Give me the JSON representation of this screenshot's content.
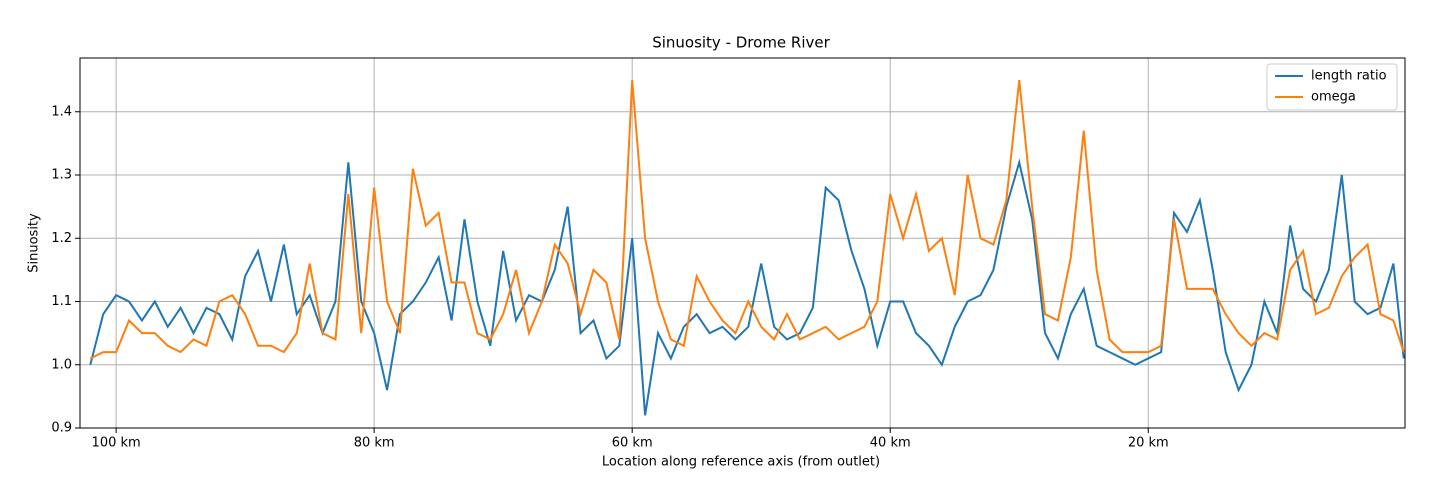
{
  "chart_data": {
    "type": "line",
    "title": "Sinuosity - Drome River",
    "xlabel": "Location along reference axis (from outlet)",
    "ylabel": "Sinuosity",
    "x": [
      102,
      101,
      100,
      99,
      98,
      97,
      96,
      95,
      94,
      93,
      92,
      91,
      90,
      89,
      88,
      87,
      86,
      85,
      84,
      83,
      82,
      81,
      80,
      79,
      78,
      77,
      76,
      75,
      74,
      73,
      72,
      71,
      70,
      69,
      68,
      67,
      66,
      65,
      64,
      63,
      62,
      61,
      60,
      59,
      58,
      57,
      56,
      55,
      54,
      53,
      52,
      51,
      50,
      49,
      48,
      47,
      46,
      45,
      44,
      43,
      42,
      41,
      40,
      39,
      38,
      37,
      36,
      35,
      34,
      33,
      32,
      31,
      30,
      29,
      28,
      27,
      26,
      25,
      24,
      23,
      22,
      21,
      20,
      19,
      18,
      17,
      16,
      15,
      14,
      13,
      12,
      11,
      10,
      9,
      8,
      7,
      6,
      5,
      4,
      3,
      2,
      1,
      0.2
    ],
    "series": [
      {
        "name": "length ratio",
        "color": "#1f77b4",
        "values": [
          1.0,
          1.08,
          1.11,
          1.1,
          1.07,
          1.1,
          1.06,
          1.09,
          1.05,
          1.09,
          1.08,
          1.04,
          1.14,
          1.18,
          1.1,
          1.19,
          1.08,
          1.11,
          1.05,
          1.1,
          1.32,
          1.1,
          1.05,
          0.96,
          1.08,
          1.1,
          1.13,
          1.17,
          1.07,
          1.23,
          1.1,
          1.03,
          1.18,
          1.07,
          1.11,
          1.1,
          1.15,
          1.25,
          1.05,
          1.07,
          1.01,
          1.03,
          1.2,
          0.92,
          1.05,
          1.01,
          1.06,
          1.08,
          1.05,
          1.06,
          1.04,
          1.06,
          1.16,
          1.06,
          1.04,
          1.05,
          1.09,
          1.28,
          1.26,
          1.18,
          1.12,
          1.03,
          1.1,
          1.1,
          1.05,
          1.03,
          1.0,
          1.06,
          1.1,
          1.11,
          1.15,
          1.25,
          1.32,
          1.23,
          1.05,
          1.01,
          1.08,
          1.12,
          1.03,
          1.02,
          1.01,
          1.0,
          1.01,
          1.02,
          1.24,
          1.21,
          1.26,
          1.15,
          1.02,
          0.96,
          1.0,
          1.1,
          1.05,
          1.22,
          1.12,
          1.1,
          1.15,
          1.3,
          1.1,
          1.08,
          1.09,
          1.16,
          1.01
        ]
      },
      {
        "name": "omega",
        "color": "#ff7f0e",
        "values": [
          1.01,
          1.02,
          1.02,
          1.07,
          1.05,
          1.05,
          1.03,
          1.02,
          1.04,
          1.03,
          1.1,
          1.11,
          1.08,
          1.03,
          1.03,
          1.02,
          1.05,
          1.16,
          1.05,
          1.04,
          1.27,
          1.05,
          1.28,
          1.1,
          1.05,
          1.31,
          1.22,
          1.24,
          1.13,
          1.13,
          1.05,
          1.04,
          1.08,
          1.15,
          1.05,
          1.1,
          1.19,
          1.16,
          1.08,
          1.15,
          1.13,
          1.04,
          1.45,
          1.2,
          1.1,
          1.04,
          1.03,
          1.14,
          1.1,
          1.07,
          1.05,
          1.1,
          1.06,
          1.04,
          1.08,
          1.04,
          1.05,
          1.06,
          1.04,
          1.05,
          1.06,
          1.1,
          1.27,
          1.2,
          1.27,
          1.18,
          1.2,
          1.11,
          1.3,
          1.2,
          1.19,
          1.26,
          1.45,
          1.25,
          1.08,
          1.07,
          1.17,
          1.37,
          1.15,
          1.04,
          1.02,
          1.02,
          1.02,
          1.03,
          1.23,
          1.12,
          1.12,
          1.12,
          1.08,
          1.05,
          1.03,
          1.05,
          1.04,
          1.15,
          1.18,
          1.08,
          1.09,
          1.14,
          1.17,
          1.19,
          1.08,
          1.07,
          1.02
        ]
      }
    ],
    "xlim": [
      102.8,
      0.1
    ],
    "ylim": [
      0.9,
      1.485
    ],
    "xticks": [
      {
        "value": 100,
        "label": "100 km"
      },
      {
        "value": 80,
        "label": "80 km"
      },
      {
        "value": 60,
        "label": "60 km"
      },
      {
        "value": 40,
        "label": "40 km"
      },
      {
        "value": 20,
        "label": "20 km"
      }
    ],
    "yticks": [
      0.9,
      {
        "value": 1,
        "label": "1.0"
      },
      1.1,
      1.2,
      1.3,
      1.4
    ],
    "grid": true,
    "legend": "upper right"
  }
}
